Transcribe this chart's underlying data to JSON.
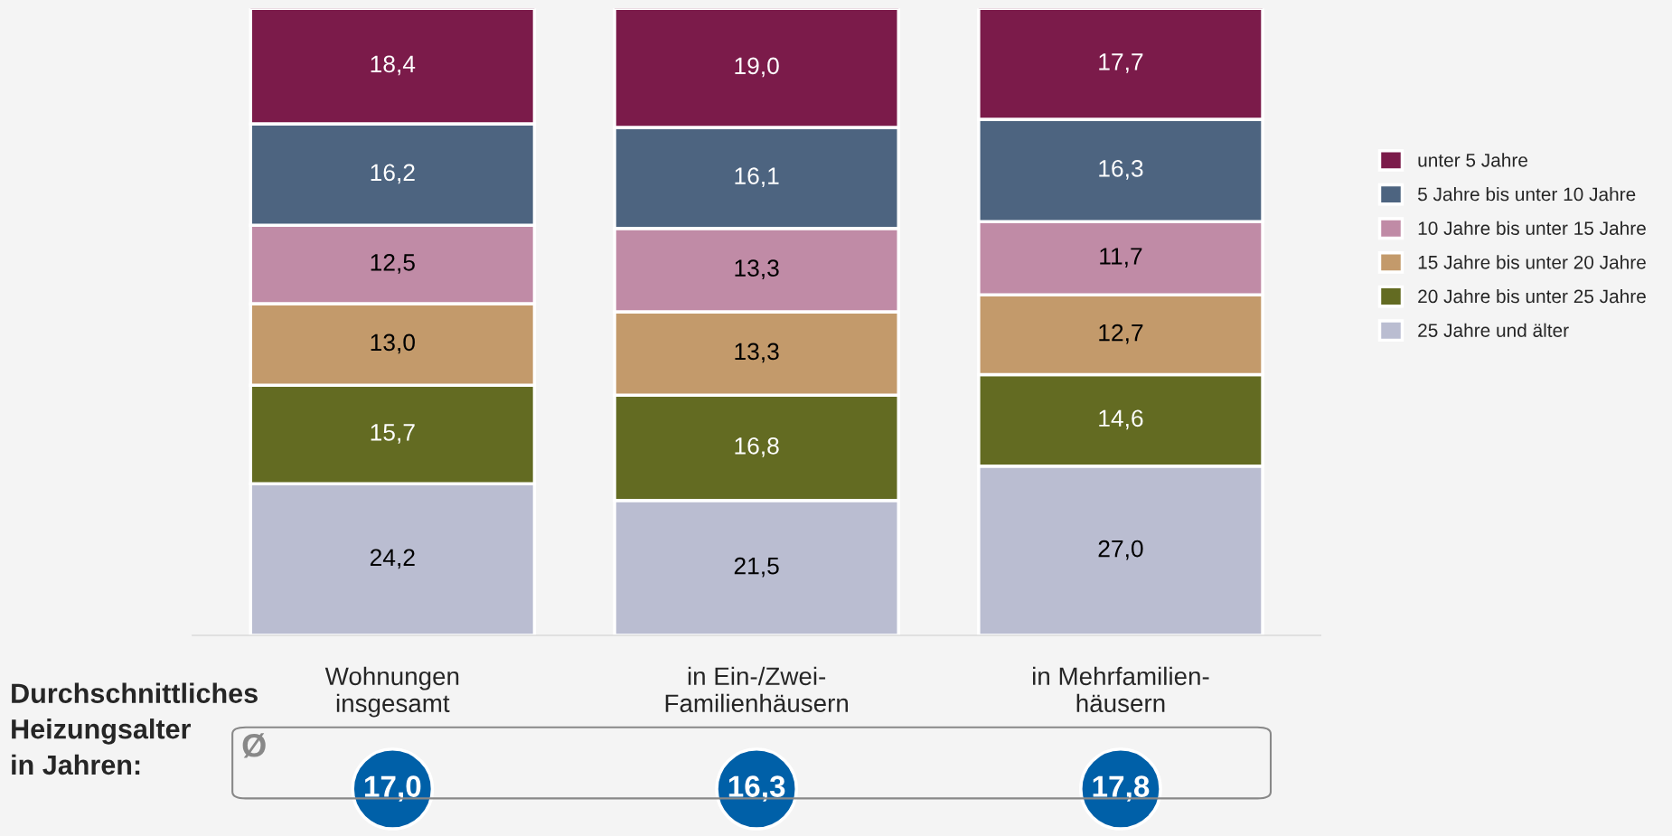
{
  "chart_data": {
    "type": "bar",
    "stacked": true,
    "legend": "right",
    "categories": [
      "Wohnungen\ninsgesamt",
      "in Ein-/Zwei-\nFamilienhäusern",
      "in Mehrfamilien-\nhäusern"
    ],
    "series": [
      {
        "name": "25 Jahre und älter",
        "color": "#babdd1",
        "values": [
          24.2,
          21.5,
          27.0
        ],
        "value_labels": [
          "24,2",
          "21,5",
          "27,0"
        ]
      },
      {
        "name": "20 Jahre bis unter 25 Jahre",
        "color": "#636b22",
        "values": [
          15.7,
          16.8,
          14.6
        ],
        "value_labels": [
          "15,7",
          "16,8",
          "14,6"
        ]
      },
      {
        "name": "15 Jahre bis unter 20 Jahre",
        "color": "#c39a6b",
        "values": [
          13.0,
          13.3,
          12.7
        ],
        "value_labels": [
          "13,0",
          "13,3",
          "12,7"
        ]
      },
      {
        "name": "10 Jahre bis unter 15 Jahre",
        "color": "#c08ba6",
        "values": [
          12.5,
          13.3,
          11.7
        ],
        "value_labels": [
          "12,5",
          "13,3",
          "11,7"
        ]
      },
      {
        "name": "5 Jahre bis unter 10 Jahre",
        "color": "#4d6480",
        "values": [
          16.2,
          16.1,
          16.3
        ],
        "value_labels": [
          "16,2",
          "16,1",
          "16,3"
        ]
      },
      {
        "name": "unter 5 Jahre",
        "color": "#7b1b4a",
        "values": [
          18.4,
          19.0,
          17.7
        ],
        "value_labels": [
          "18,4",
          "19,0",
          "17,7"
        ]
      }
    ],
    "annotations": [
      "Durchschnittliches\nHeizungsalter\nin Jahren:",
      "Ø",
      "17,0",
      "16,3",
      "17,8"
    ]
  }
}
